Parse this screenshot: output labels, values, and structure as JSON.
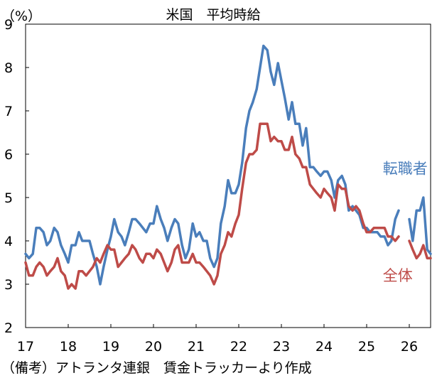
{
  "chart_data": {
    "type": "line",
    "title": "米国　平均時給",
    "ylabel": "（%）",
    "xlabel": "",
    "ylim": [
      2,
      9
    ],
    "yticks": [
      2,
      3,
      4,
      5,
      6,
      7,
      8,
      9
    ],
    "xlim": [
      2017.0,
      2026.5
    ],
    "xticks": [
      {
        "label": "17",
        "x": 2017.0
      },
      {
        "label": "18",
        "x": 2018.0
      },
      {
        "label": "19",
        "x": 2019.0
      },
      {
        "label": "20",
        "x": 2020.0
      },
      {
        "label": "21",
        "x": 2021.0
      },
      {
        "label": "22",
        "x": 2022.0
      },
      {
        "label": "23",
        "x": 2023.0
      },
      {
        "label": "24",
        "x": 2024.0
      },
      {
        "label": "25",
        "x": 2025.0
      },
      {
        "label": "26",
        "x": 2026.0
      }
    ],
    "grid": false,
    "series": [
      {
        "name": "転職者",
        "color": "#4a7ebb",
        "segments": [
          [
            [
              2017.0,
              3.7
            ],
            [
              2017.08,
              3.6
            ],
            [
              2017.17,
              3.7
            ],
            [
              2017.25,
              4.3
            ],
            [
              2017.33,
              4.3
            ],
            [
              2017.42,
              4.2
            ],
            [
              2017.5,
              3.9
            ],
            [
              2017.58,
              4.0
            ],
            [
              2017.67,
              4.3
            ],
            [
              2017.75,
              4.2
            ],
            [
              2017.83,
              3.9
            ],
            [
              2017.92,
              3.7
            ],
            [
              2018.0,
              3.5
            ],
            [
              2018.08,
              3.9
            ],
            [
              2018.17,
              3.9
            ],
            [
              2018.25,
              4.2
            ],
            [
              2018.33,
              4.0
            ],
            [
              2018.42,
              4.0
            ],
            [
              2018.5,
              4.0
            ],
            [
              2018.58,
              3.7
            ],
            [
              2018.67,
              3.4
            ],
            [
              2018.75,
              3.0
            ],
            [
              2018.83,
              3.4
            ],
            [
              2018.92,
              3.8
            ],
            [
              2019.0,
              4.1
            ],
            [
              2019.08,
              4.5
            ],
            [
              2019.17,
              4.2
            ],
            [
              2019.25,
              4.1
            ],
            [
              2019.33,
              3.9
            ],
            [
              2019.42,
              4.2
            ],
            [
              2019.5,
              4.5
            ],
            [
              2019.58,
              4.5
            ],
            [
              2019.67,
              4.4
            ],
            [
              2019.75,
              4.3
            ],
            [
              2019.83,
              4.2
            ],
            [
              2019.92,
              4.4
            ],
            [
              2020.0,
              4.4
            ],
            [
              2020.08,
              4.8
            ],
            [
              2020.17,
              4.5
            ],
            [
              2020.25,
              4.3
            ],
            [
              2020.33,
              4.0
            ],
            [
              2020.42,
              4.3
            ],
            [
              2020.5,
              4.5
            ],
            [
              2020.58,
              4.4
            ],
            [
              2020.67,
              3.9
            ],
            [
              2020.75,
              3.6
            ],
            [
              2020.83,
              3.8
            ],
            [
              2020.92,
              4.4
            ],
            [
              2021.0,
              4.1
            ],
            [
              2021.08,
              4.2
            ],
            [
              2021.17,
              4.0
            ],
            [
              2021.25,
              4.0
            ],
            [
              2021.33,
              3.6
            ],
            [
              2021.42,
              3.4
            ],
            [
              2021.5,
              3.6
            ],
            [
              2021.58,
              4.4
            ],
            [
              2021.67,
              4.8
            ],
            [
              2021.75,
              5.4
            ],
            [
              2021.83,
              5.1
            ],
            [
              2021.92,
              5.1
            ],
            [
              2022.0,
              5.3
            ],
            [
              2022.08,
              5.8
            ],
            [
              2022.17,
              6.6
            ],
            [
              2022.25,
              7.0
            ],
            [
              2022.33,
              7.2
            ],
            [
              2022.42,
              7.5
            ],
            [
              2022.5,
              8.0
            ],
            [
              2022.58,
              8.5
            ],
            [
              2022.67,
              8.4
            ],
            [
              2022.75,
              7.9
            ],
            [
              2022.83,
              7.6
            ],
            [
              2022.92,
              8.1
            ],
            [
              2023.0,
              7.7
            ],
            [
              2023.08,
              7.3
            ],
            [
              2023.17,
              6.8
            ],
            [
              2023.25,
              7.2
            ],
            [
              2023.33,
              6.7
            ],
            [
              2023.42,
              6.7
            ],
            [
              2023.5,
              6.2
            ],
            [
              2023.58,
              6.6
            ],
            [
              2023.67,
              5.7
            ],
            [
              2023.75,
              5.7
            ],
            [
              2023.83,
              5.6
            ],
            [
              2023.92,
              5.5
            ],
            [
              2024.0,
              5.6
            ],
            [
              2024.08,
              5.6
            ],
            [
              2024.17,
              5.4
            ],
            [
              2024.25,
              5.0
            ],
            [
              2024.33,
              5.4
            ],
            [
              2024.42,
              5.5
            ],
            [
              2024.5,
              5.3
            ],
            [
              2024.58,
              4.7
            ],
            [
              2024.67,
              4.8
            ],
            [
              2024.75,
              4.7
            ],
            [
              2024.83,
              4.6
            ],
            [
              2024.92,
              4.3
            ],
            [
              2025.0,
              4.3
            ],
            [
              2025.08,
              4.2
            ],
            [
              2025.17,
              4.2
            ],
            [
              2025.25,
              4.2
            ],
            [
              2025.33,
              4.1
            ],
            [
              2025.42,
              4.1
            ],
            [
              2025.5,
              3.9
            ],
            [
              2025.58,
              4.0
            ],
            [
              2025.67,
              4.5
            ],
            [
              2025.75,
              4.7
            ]
          ],
          [
            [
              2026.0,
              4.5
            ],
            [
              2026.08,
              4.0
            ],
            [
              2026.17,
              4.7
            ],
            [
              2026.25,
              4.7
            ],
            [
              2026.33,
              5.0
            ],
            [
              2026.42,
              3.8
            ],
            [
              2026.5,
              3.7
            ]
          ]
        ]
      },
      {
        "name": "全体",
        "color": "#be4b48",
        "segments": [
          [
            [
              2017.0,
              3.5
            ],
            [
              2017.08,
              3.2
            ],
            [
              2017.17,
              3.2
            ],
            [
              2017.25,
              3.4
            ],
            [
              2017.33,
              3.5
            ],
            [
              2017.42,
              3.4
            ],
            [
              2017.5,
              3.2
            ],
            [
              2017.58,
              3.3
            ],
            [
              2017.67,
              3.4
            ],
            [
              2017.75,
              3.6
            ],
            [
              2017.83,
              3.3
            ],
            [
              2017.92,
              3.2
            ],
            [
              2018.0,
              2.9
            ],
            [
              2018.08,
              3.0
            ],
            [
              2018.17,
              2.9
            ],
            [
              2018.25,
              3.3
            ],
            [
              2018.33,
              3.3
            ],
            [
              2018.42,
              3.2
            ],
            [
              2018.5,
              3.3
            ],
            [
              2018.58,
              3.4
            ],
            [
              2018.67,
              3.6
            ],
            [
              2018.75,
              3.5
            ],
            [
              2018.83,
              3.7
            ],
            [
              2018.92,
              3.9
            ],
            [
              2019.0,
              3.8
            ],
            [
              2019.08,
              3.8
            ],
            [
              2019.17,
              3.4
            ],
            [
              2019.25,
              3.5
            ],
            [
              2019.33,
              3.6
            ],
            [
              2019.42,
              3.7
            ],
            [
              2019.5,
              3.9
            ],
            [
              2019.58,
              3.8
            ],
            [
              2019.67,
              3.6
            ],
            [
              2019.75,
              3.5
            ],
            [
              2019.83,
              3.7
            ],
            [
              2019.92,
              3.7
            ],
            [
              2020.0,
              3.6
            ],
            [
              2020.08,
              3.8
            ],
            [
              2020.17,
              3.7
            ],
            [
              2020.25,
              3.5
            ],
            [
              2020.33,
              3.3
            ],
            [
              2020.42,
              3.5
            ],
            [
              2020.5,
              3.8
            ],
            [
              2020.58,
              3.9
            ],
            [
              2020.67,
              3.5
            ],
            [
              2020.75,
              3.5
            ],
            [
              2020.83,
              3.5
            ],
            [
              2020.92,
              3.7
            ],
            [
              2021.0,
              3.5
            ],
            [
              2021.08,
              3.5
            ],
            [
              2021.17,
              3.4
            ],
            [
              2021.25,
              3.3
            ],
            [
              2021.33,
              3.2
            ],
            [
              2021.42,
              3.0
            ],
            [
              2021.5,
              3.2
            ],
            [
              2021.58,
              3.7
            ],
            [
              2021.67,
              3.9
            ],
            [
              2021.75,
              4.2
            ],
            [
              2021.83,
              4.1
            ],
            [
              2021.92,
              4.4
            ],
            [
              2022.0,
              4.6
            ],
            [
              2022.08,
              5.2
            ],
            [
              2022.17,
              5.8
            ],
            [
              2022.25,
              6.0
            ],
            [
              2022.33,
              6.0
            ],
            [
              2022.42,
              6.1
            ],
            [
              2022.5,
              6.7
            ],
            [
              2022.58,
              6.7
            ],
            [
              2022.67,
              6.7
            ],
            [
              2022.75,
              6.3
            ],
            [
              2022.83,
              6.4
            ],
            [
              2022.92,
              6.3
            ],
            [
              2023.0,
              6.3
            ],
            [
              2023.08,
              6.1
            ],
            [
              2023.17,
              6.1
            ],
            [
              2023.25,
              6.4
            ],
            [
              2023.33,
              6.0
            ],
            [
              2023.42,
              5.9
            ],
            [
              2023.5,
              5.7
            ],
            [
              2023.58,
              5.7
            ],
            [
              2023.67,
              5.3
            ],
            [
              2023.75,
              5.2
            ],
            [
              2023.83,
              5.1
            ],
            [
              2023.92,
              5.0
            ],
            [
              2024.0,
              5.2
            ],
            [
              2024.08,
              5.1
            ],
            [
              2024.17,
              5.0
            ],
            [
              2024.25,
              4.7
            ],
            [
              2024.33,
              5.3
            ],
            [
              2024.42,
              5.2
            ],
            [
              2024.5,
              5.2
            ],
            [
              2024.58,
              4.8
            ],
            [
              2024.67,
              4.7
            ],
            [
              2024.75,
              4.8
            ],
            [
              2024.83,
              4.7
            ],
            [
              2024.92,
              4.4
            ],
            [
              2025.0,
              4.2
            ],
            [
              2025.08,
              4.2
            ],
            [
              2025.17,
              4.3
            ],
            [
              2025.25,
              4.3
            ],
            [
              2025.33,
              4.3
            ],
            [
              2025.42,
              4.3
            ],
            [
              2025.5,
              4.1
            ],
            [
              2025.58,
              4.1
            ],
            [
              2025.67,
              4.0
            ],
            [
              2025.75,
              4.1
            ]
          ],
          [
            [
              2026.0,
              4.0
            ],
            [
              2026.08,
              3.8
            ],
            [
              2026.17,
              3.6
            ],
            [
              2026.25,
              3.7
            ],
            [
              2026.33,
              3.9
            ],
            [
              2026.42,
              3.6
            ],
            [
              2026.5,
              3.6
            ]
          ]
        ]
      }
    ],
    "annotations": [
      {
        "series": "転職者",
        "x": 2025.38,
        "y": 5.55
      },
      {
        "series": "全体",
        "x": 2025.38,
        "y": 3.08
      }
    ]
  },
  "caption": "（備考）アトランタ連銀　賃金トラッカーより作成"
}
